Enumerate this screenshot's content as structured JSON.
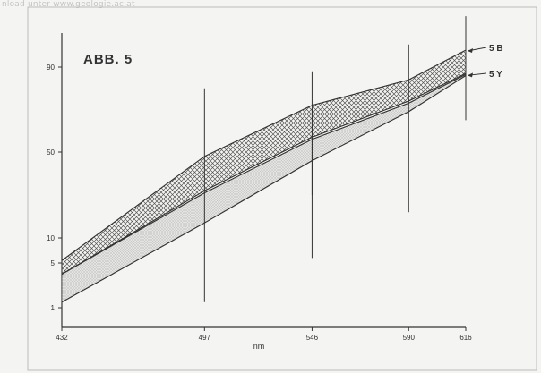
{
  "watermark": "nload unter www.geologie.ac.at",
  "chart_data": {
    "type": "area",
    "title": "ABB. 5",
    "xlabel": "nm",
    "ylabel": "",
    "x": [
      432,
      497,
      546,
      590,
      616
    ],
    "x_tick_labels": [
      "432",
      "497",
      "546",
      "590",
      "616"
    ],
    "y_ticks": [
      1,
      5,
      10,
      50,
      90
    ],
    "y_tick_labels": [
      "1",
      "5",
      "10",
      "50",
      "90"
    ],
    "y_scale": "probability",
    "grid": false,
    "legend": "inline-right",
    "series": [
      {
        "name": "5 B",
        "style": "crosshatch",
        "upper": [
          5.5,
          48,
          72,
          84,
          93
        ],
        "lower": [
          4,
          32,
          57,
          74,
          87
        ]
      },
      {
        "name": "5 Y",
        "style": "stipple",
        "upper": [
          4,
          31,
          56,
          73,
          86.5
        ],
        "lower": [
          1.5,
          17,
          46,
          69,
          86
        ]
      }
    ],
    "annotations": [
      {
        "x": 497,
        "y_from": 1.5,
        "y_to": 80
      },
      {
        "x": 546,
        "y_from": 6,
        "y_to": 88
      },
      {
        "x": 546,
        "y_from": 30,
        "y_to": 70
      },
      {
        "x": 590,
        "y_from": 22,
        "y_to": 94
      },
      {
        "x": 616,
        "y_from": 65,
        "y_to": 99
      }
    ],
    "colors": {
      "ink": "#333333",
      "hatch": "#555555",
      "stipple": "#888888",
      "paper": "#f4f4f2"
    }
  }
}
